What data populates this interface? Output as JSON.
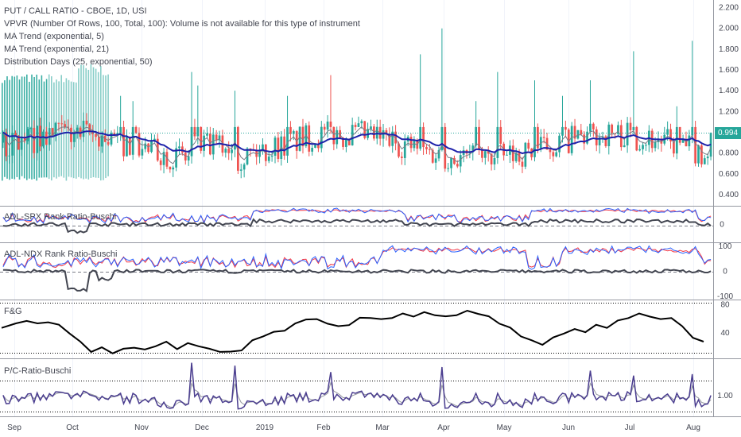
{
  "panes": {
    "main": {
      "title": "PUT / CALL RATIO - CBOE, 1D, USI",
      "indicators": [
        "VPVR (Number Of Rows, 100, Total, 100): Volume is not available for this type of instrument",
        "MA Trend (exponential, 5)",
        "MA Trend (exponential, 21)",
        "Distribution Days (25, exponential, 50)"
      ],
      "last_price": "0.994"
    },
    "adl_spx": {
      "title": "ADL-SPX Rank Ratio-Buschi"
    },
    "adl_ndx": {
      "title": "ADL-NDX Rank Ratio-Buschi"
    },
    "fg": {
      "title": "F&G"
    },
    "pc": {
      "title": "P/C-Ratio-Buschi"
    }
  },
  "colors": {
    "up": "#26a69a",
    "down": "#ef5350",
    "ma_slow": "#1e22aa",
    "ma_fast": "#787b86",
    "red_line": "#f23645",
    "blue_line": "#2962ff",
    "black_line": "#000000",
    "pc_line": "#4a3d8f"
  },
  "chart_data": [
    {
      "type": "candlestick",
      "pane": "main",
      "ylim": [
        0.3,
        2.25
      ],
      "yticks": [
        "2.200",
        "2.000",
        "1.800",
        "1.600",
        "1.400",
        "1.200",
        "1.000",
        "0.800",
        "0.600",
        "0.400"
      ],
      "ytick_values": [
        2.2,
        2.0,
        1.8,
        1.6,
        1.4,
        1.2,
        1.0,
        0.8,
        0.6,
        0.4
      ],
      "notable_highs": [
        {
          "month": "Nov",
          "value": 1.35
        },
        {
          "month": "Dec",
          "value": 1.58
        },
        {
          "month": "Feb",
          "value": 1.55
        },
        {
          "month": "Apr",
          "value": 2.0
        },
        {
          "month": "Apr",
          "value": 1.7
        },
        {
          "month": "Jun",
          "value": 1.78
        },
        {
          "month": "Aug",
          "value": 1.88
        }
      ],
      "close_last": 0.994
    },
    {
      "type": "line",
      "pane": "adl_spx",
      "yticks": [
        "0"
      ],
      "ytick_values": [
        0
      ],
      "ylim": [
        -30,
        30
      ]
    },
    {
      "type": "line",
      "pane": "adl_ndx",
      "yticks": [
        "100",
        "0",
        "-100"
      ],
      "ytick_values": [
        100,
        0,
        -100
      ],
      "ylim": [
        -110,
        110
      ]
    },
    {
      "type": "line",
      "pane": "fg",
      "yticks": [
        "80",
        "40"
      ],
      "ytick_values": [
        80,
        40
      ],
      "ylim": [
        5,
        85
      ],
      "series_points": [
        {
          "t": 0,
          "v": 48
        },
        {
          "t": 8,
          "v": 52
        },
        {
          "t": 14,
          "v": 58
        },
        {
          "t": 20,
          "v": 52
        },
        {
          "t": 26,
          "v": 56
        },
        {
          "t": 32,
          "v": 50
        },
        {
          "t": 38,
          "v": 40
        },
        {
          "t": 44,
          "v": 26
        },
        {
          "t": 50,
          "v": 14
        },
        {
          "t": 56,
          "v": 18
        },
        {
          "t": 62,
          "v": 12
        },
        {
          "t": 68,
          "v": 16
        },
        {
          "t": 74,
          "v": 20
        },
        {
          "t": 80,
          "v": 15
        },
        {
          "t": 86,
          "v": 22
        },
        {
          "t": 92,
          "v": 26
        },
        {
          "t": 98,
          "v": 18
        },
        {
          "t": 104,
          "v": 24
        },
        {
          "t": 110,
          "v": 22
        },
        {
          "t": 116,
          "v": 16
        },
        {
          "t": 122,
          "v": 14
        },
        {
          "t": 128,
          "v": 12
        },
        {
          "t": 134,
          "v": 16
        },
        {
          "t": 140,
          "v": 28
        },
        {
          "t": 146,
          "v": 36
        },
        {
          "t": 152,
          "v": 40
        },
        {
          "t": 158,
          "v": 44
        },
        {
          "t": 164,
          "v": 52
        },
        {
          "t": 170,
          "v": 60
        },
        {
          "t": 176,
          "v": 58
        },
        {
          "t": 182,
          "v": 54
        },
        {
          "t": 188,
          "v": 48
        },
        {
          "t": 194,
          "v": 52
        },
        {
          "t": 200,
          "v": 60
        },
        {
          "t": 206,
          "v": 62
        },
        {
          "t": 212,
          "v": 58
        },
        {
          "t": 218,
          "v": 62
        },
        {
          "t": 224,
          "v": 66
        },
        {
          "t": 230,
          "v": 64
        },
        {
          "t": 236,
          "v": 68
        },
        {
          "t": 242,
          "v": 66
        },
        {
          "t": 248,
          "v": 62
        },
        {
          "t": 254,
          "v": 66
        },
        {
          "t": 260,
          "v": 70
        },
        {
          "t": 266,
          "v": 68
        },
        {
          "t": 272,
          "v": 62
        },
        {
          "t": 278,
          "v": 54
        },
        {
          "t": 284,
          "v": 46
        },
        {
          "t": 290,
          "v": 36
        },
        {
          "t": 296,
          "v": 28
        },
        {
          "t": 302,
          "v": 24
        },
        {
          "t": 308,
          "v": 32
        },
        {
          "t": 314,
          "v": 40
        },
        {
          "t": 320,
          "v": 44
        },
        {
          "t": 326,
          "v": 42
        },
        {
          "t": 332,
          "v": 50
        },
        {
          "t": 338,
          "v": 48
        },
        {
          "t": 344,
          "v": 56
        },
        {
          "t": 350,
          "v": 62
        },
        {
          "t": 356,
          "v": 66
        },
        {
          "t": 362,
          "v": 64
        },
        {
          "t": 368,
          "v": 58
        },
        {
          "t": 374,
          "v": 62
        },
        {
          "t": 380,
          "v": 48
        },
        {
          "t": 386,
          "v": 34
        },
        {
          "t": 392,
          "v": 26
        }
      ]
    },
    {
      "type": "line",
      "pane": "pc",
      "yticks": [
        "1.00"
      ],
      "ytick_values": [
        1.0
      ],
      "ylim": [
        0.72,
        1.5
      ]
    }
  ],
  "x_axis": {
    "labels": [
      "Sep",
      "Oct",
      "Nov",
      "Dec",
      "2019",
      "Feb",
      "Mar",
      "Apr",
      "May",
      "Jun",
      "Jul",
      "Aug"
    ]
  }
}
